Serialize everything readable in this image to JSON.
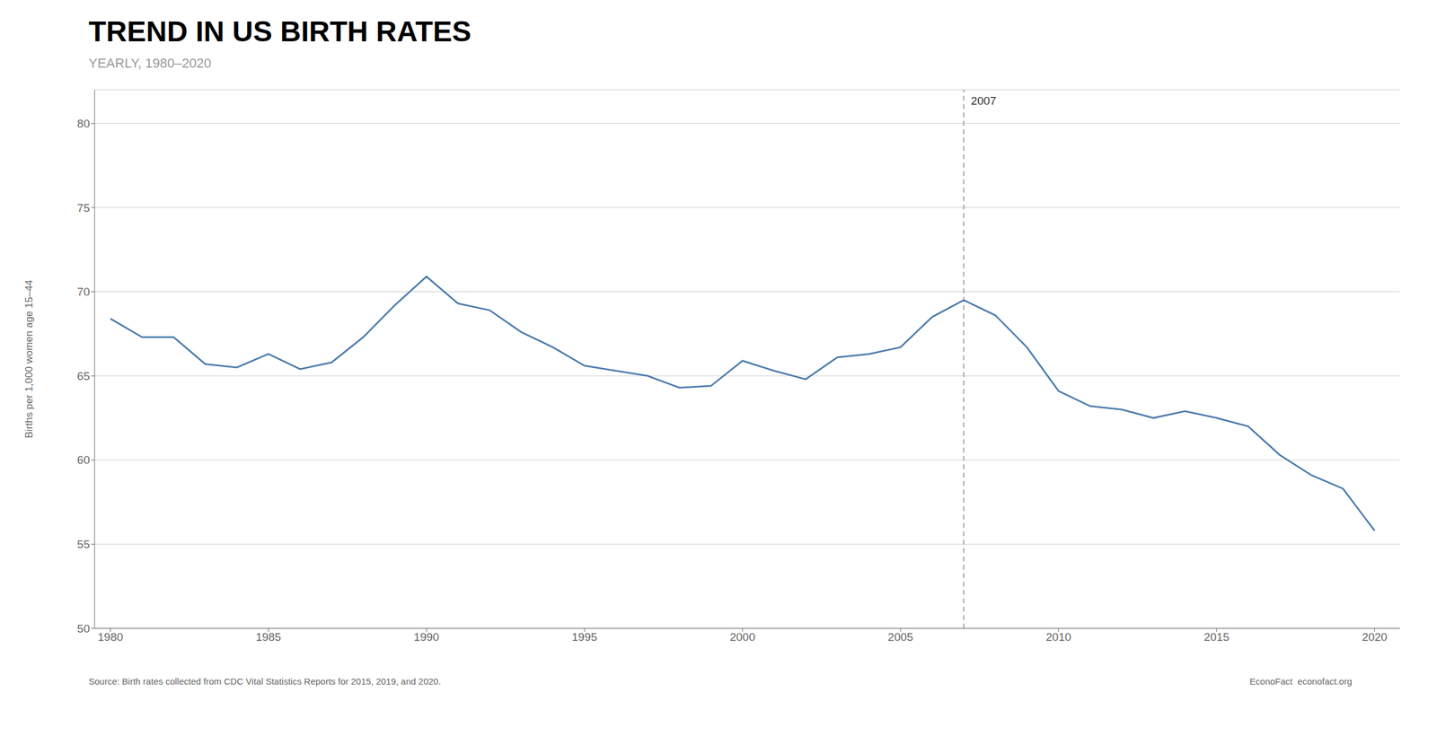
{
  "chart_data": {
    "type": "line",
    "title": "TREND IN US BIRTH RATES",
    "subtitle": "YEARLY, 1980–2020",
    "y_label": "Births per 1,000 women age 15–44",
    "source": "Source: Birth rates collected from CDC Vital Statistics Reports for 2015, 2019, and 2020.",
    "credit": "EconoFact  econofact.org",
    "x": [
      1980,
      1981,
      1982,
      1983,
      1984,
      1985,
      1986,
      1987,
      1988,
      1989,
      1990,
      1991,
      1992,
      1993,
      1994,
      1995,
      1996,
      1997,
      1998,
      1999,
      2000,
      2001,
      2002,
      2003,
      2004,
      2005,
      2006,
      2007,
      2008,
      2009,
      2010,
      2011,
      2012,
      2013,
      2014,
      2015,
      2016,
      2017,
      2018,
      2019,
      2020
    ],
    "values": [
      68.4,
      67.3,
      67.3,
      65.7,
      65.5,
      66.3,
      65.4,
      65.8,
      67.3,
      69.2,
      70.9,
      69.3,
      68.9,
      67.6,
      66.7,
      65.6,
      65.3,
      65.0,
      64.3,
      64.4,
      65.9,
      65.3,
      64.8,
      66.1,
      66.3,
      66.7,
      68.5,
      69.5,
      68.6,
      66.7,
      64.1,
      63.2,
      63.0,
      62.5,
      62.9,
      62.5,
      62.0,
      60.3,
      59.1,
      58.3,
      55.8
    ],
    "color": "#4a7aab",
    "xlim": [
      1979.5,
      2020.8
    ],
    "ylim": [
      50,
      82
    ],
    "xticks": [
      1980,
      1985,
      1990,
      1995,
      2000,
      2005,
      2010,
      2015,
      2020
    ],
    "yticks": [
      50,
      55,
      60,
      65,
      70,
      75,
      80
    ],
    "grid": "y",
    "annotations": [
      {
        "x": 2007,
        "text": "2007",
        "color": "#999999",
        "line_style": "dashed"
      }
    ]
  }
}
